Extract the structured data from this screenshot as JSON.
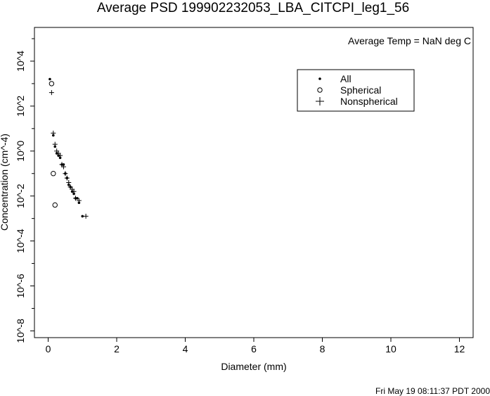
{
  "chart_data": {
    "type": "scatter",
    "title": "Average PSD 199902232053_LBA_CITCPI_leg1_56",
    "xlabel": "Diameter (mm)",
    "ylabel": "Concentration (cm^-4)",
    "annotation": "Average Temp = NaN deg C",
    "timestamp": "Fri May 19 08:11:37 PDT 2000",
    "xlim": [
      -0.4,
      12.4
    ],
    "ylim": [
      -8.3,
      5.5
    ],
    "y_scale": "log10",
    "x_ticks": [
      0,
      2,
      4,
      6,
      8,
      10,
      12
    ],
    "x_tick_labels": [
      "0",
      "2",
      "4",
      "6",
      "8",
      "10",
      "12"
    ],
    "y_ticks": [
      -8,
      -6,
      -4,
      -2,
      0,
      2,
      4
    ],
    "y_tick_labels": [
      "10^-8",
      "10^-6",
      "10^-4",
      "10^-2",
      "10^0",
      "10^2",
      "10^4"
    ],
    "legend_position": "top-right",
    "series": [
      {
        "name": "All",
        "marker": "dot",
        "x": [
          0.05,
          0.15,
          0.2,
          0.25,
          0.3,
          0.35,
          0.4,
          0.45,
          0.5,
          0.55,
          0.6,
          0.65,
          0.7,
          0.75,
          0.8,
          0.85,
          0.9,
          1.0
        ],
        "log10_y": [
          3.2,
          0.7,
          0.2,
          -0.1,
          -0.2,
          -0.3,
          -0.6,
          -0.6,
          -1.0,
          -1.2,
          -1.5,
          -1.6,
          -1.8,
          -1.9,
          -2.1,
          -2.1,
          -2.3,
          -2.9
        ]
      },
      {
        "name": "Spherical",
        "marker": "circle",
        "x": [
          0.1,
          0.15,
          0.2
        ],
        "log10_y": [
          3.0,
          -1.0,
          -2.4
        ]
      },
      {
        "name": "Nonspherical",
        "marker": "plus",
        "x": [
          0.1,
          0.15,
          0.2,
          0.25,
          0.3,
          0.35,
          0.4,
          0.45,
          0.5,
          0.55,
          0.6,
          0.65,
          0.7,
          0.75,
          0.8,
          0.9,
          1.1
        ],
        "log10_y": [
          2.6,
          0.8,
          0.3,
          0.0,
          -0.1,
          -0.2,
          -0.6,
          -0.7,
          -1.0,
          -1.2,
          -1.4,
          -1.6,
          -1.7,
          -1.8,
          -2.1,
          -2.2,
          -2.9
        ]
      }
    ]
  }
}
